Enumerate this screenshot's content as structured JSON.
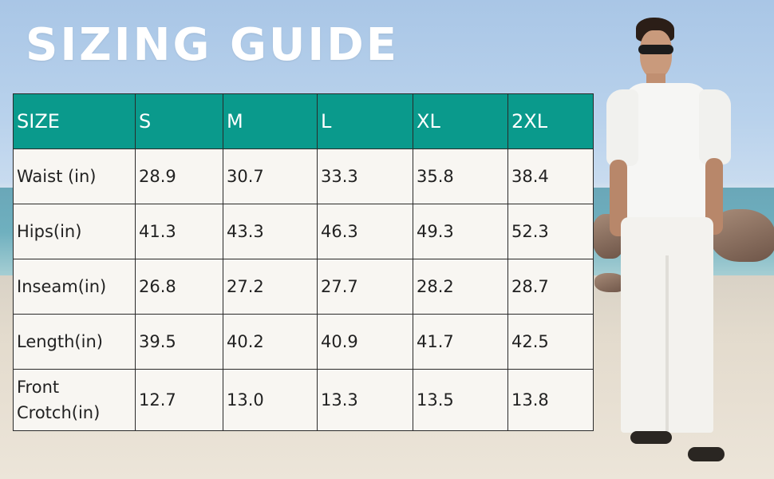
{
  "title": "SIZING GUIDE",
  "table": {
    "header": [
      "SIZE",
      "S",
      "M",
      "L",
      "XL",
      "2XL"
    ],
    "rows": [
      {
        "label": "Waist (in)",
        "values": [
          "28.9",
          "30.7",
          "33.3",
          "35.8",
          "38.4"
        ]
      },
      {
        "label": "Hips(in)",
        "values": [
          "41.3",
          "43.3",
          "46.3",
          "49.3",
          "52.3"
        ]
      },
      {
        "label": "Inseam(in)",
        "values": [
          "26.8",
          "27.2",
          "27.7",
          "28.2",
          "28.7"
        ]
      },
      {
        "label": "Length(in)",
        "values": [
          "39.5",
          "40.2",
          "40.9",
          "41.7",
          "42.5"
        ]
      },
      {
        "label": "Front Crotch(in)",
        "values": [
          "12.7",
          "13.0",
          "13.3",
          "13.5",
          "13.8"
        ]
      }
    ]
  },
  "colors": {
    "header_bg": "#0a9a8c",
    "header_text": "#ffffff",
    "cell_bg": "#f8f6f2",
    "title_text": "#ffffff"
  }
}
